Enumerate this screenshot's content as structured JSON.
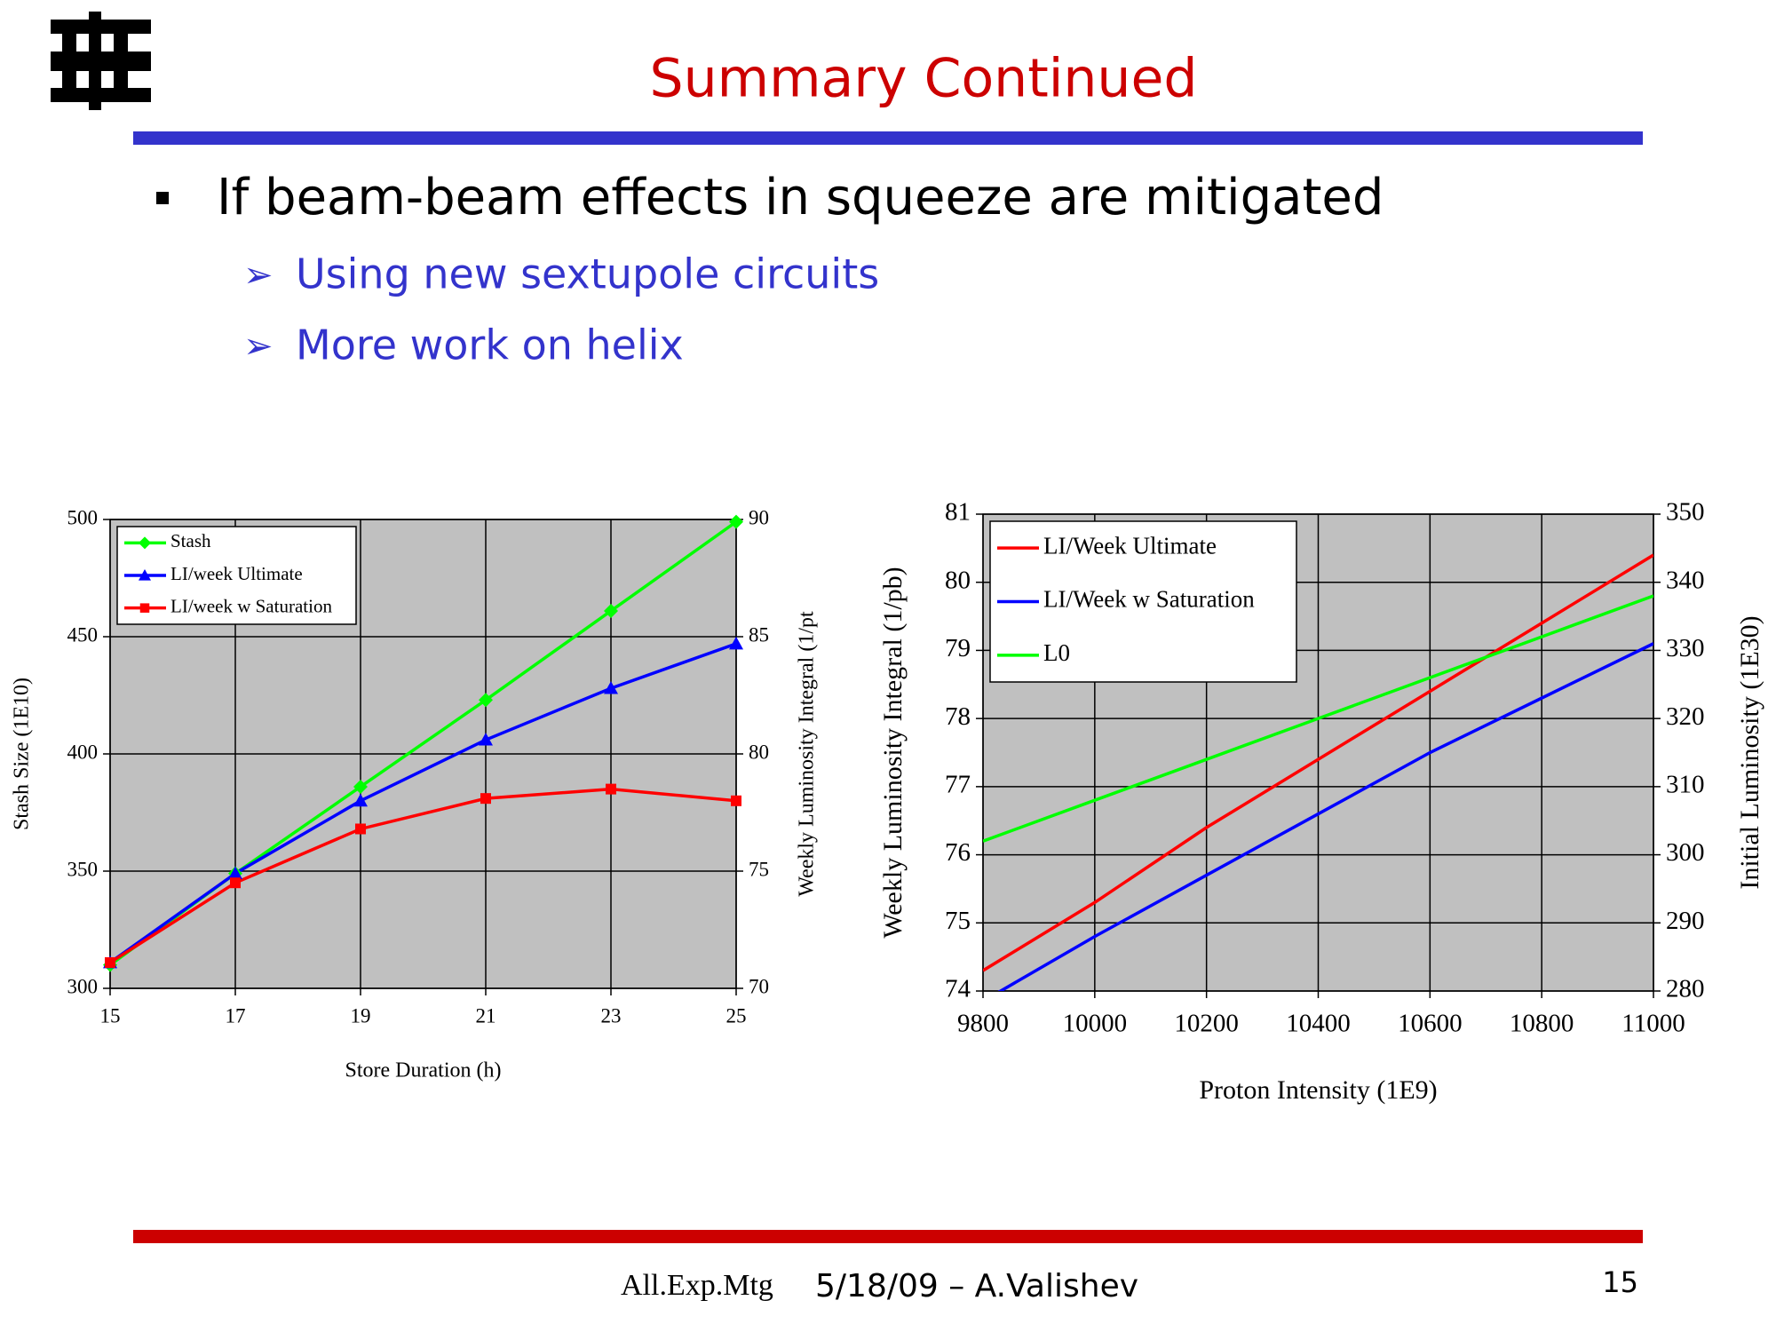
{
  "header": {
    "title": "Summary Continued"
  },
  "bullets": {
    "main": "If beam-beam effects in squeeze are mitigated",
    "sub": [
      "Using new sextupole circuits",
      "More work on helix"
    ]
  },
  "footer": {
    "meeting": "All.Exp.Mtg",
    "date_author": "5/18/09 – A.Valishev",
    "page": "15"
  },
  "chart_data": [
    {
      "type": "line",
      "xlabel": "Store Duration (h)",
      "ylabel": "Stash Size (1E10)",
      "y2label": "Weekly Luminosity Integral (1/pt",
      "x": [
        15,
        17,
        19,
        21,
        23,
        25
      ],
      "xlim": [
        15,
        25
      ],
      "xticks": [
        15,
        17,
        19,
        21,
        23,
        25
      ],
      "ylim": [
        300,
        500
      ],
      "yticks": [
        300,
        350,
        400,
        450,
        500
      ],
      "y2lim": [
        70,
        90
      ],
      "y2ticks": [
        70,
        75,
        80,
        85,
        90
      ],
      "grid": true,
      "legend": "upper-left",
      "series": [
        {
          "name": "Stash",
          "color": "#00ff00",
          "marker": "diamond",
          "values": [
            310,
            349,
            386,
            423,
            461,
            499
          ]
        },
        {
          "name": "LI/week Ultimate",
          "color": "#0000ff",
          "marker": "triangle",
          "axis": "y2",
          "values": [
            71.1,
            74.9,
            78.0,
            80.6,
            82.8,
            84.7
          ]
        },
        {
          "name": "LI/week w Saturation",
          "color": "#ff0000",
          "marker": "square",
          "axis": "y2",
          "values": [
            71.1,
            74.5,
            76.8,
            78.1,
            78.5,
            78.0
          ]
        }
      ]
    },
    {
      "type": "line",
      "xlabel": "Proton Intensity (1E9)",
      "ylabel": "Weekly Luminosity Integral (1/pb)",
      "y2label": "Initial Luminosity (1E30)",
      "x": [
        9800,
        10000,
        10200,
        10400,
        10600,
        10800,
        11000
      ],
      "xlim": [
        9800,
        11000
      ],
      "xticks": [
        9800,
        10000,
        10200,
        10400,
        10600,
        10800,
        11000
      ],
      "ylim": [
        74,
        81
      ],
      "yticks": [
        74,
        75,
        76,
        77,
        78,
        79,
        80,
        81
      ],
      "y2lim": [
        280,
        350
      ],
      "y2ticks": [
        280,
        290,
        300,
        310,
        320,
        330,
        340,
        350
      ],
      "grid": true,
      "legend": "upper-left",
      "series": [
        {
          "name": "LI/Week Ultimate",
          "color": "#ff0000",
          "values": [
            74.3,
            75.3,
            76.4,
            77.4,
            78.4,
            79.4,
            80.4
          ]
        },
        {
          "name": "LI/Week w Saturation",
          "color": "#0000ff",
          "values": [
            73.85,
            74.8,
            75.7,
            76.6,
            77.5,
            78.3,
            79.1
          ]
        },
        {
          "name": "L0",
          "color": "#00ff00",
          "axis": "y2",
          "values": [
            302,
            308,
            314,
            320,
            326,
            332,
            338
          ]
        }
      ]
    }
  ]
}
